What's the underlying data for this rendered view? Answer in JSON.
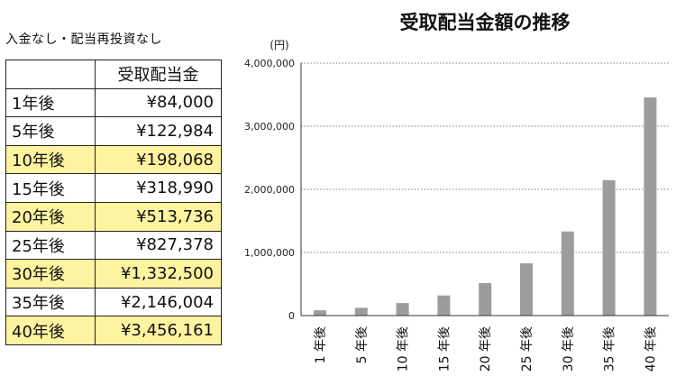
{
  "note": "入金なし・配当再投資なし",
  "table": {
    "header": [
      "",
      "受取配当金"
    ],
    "rows": [
      {
        "label": "1年後",
        "value": "¥84,000",
        "highlight": false
      },
      {
        "label": "5年後",
        "value": "¥122,984",
        "highlight": false
      },
      {
        "label": "10年後",
        "value": "¥198,068",
        "highlight": true
      },
      {
        "label": "15年後",
        "value": "¥318,990",
        "highlight": false
      },
      {
        "label": "20年後",
        "value": "¥513,736",
        "highlight": true
      },
      {
        "label": "25年後",
        "value": "¥827,378",
        "highlight": false
      },
      {
        "label": "30年後",
        "value": "¥1,332,500",
        "highlight": true
      },
      {
        "label": "35年後",
        "value": "¥2,146,004",
        "highlight": false
      },
      {
        "label": "40年後",
        "value": "¥3,456,161",
        "highlight": true
      }
    ],
    "highlight_color": "#fdf3a0"
  },
  "chart_data": {
    "type": "bar",
    "title": "受取配当金額の推移",
    "ylabel": "(円)",
    "xlabel": "",
    "categories": [
      "1 年後",
      "5 年後",
      "10 年後",
      "15 年後",
      "20 年後",
      "25 年後",
      "30 年後",
      "35 年後",
      "40 年後"
    ],
    "values": [
      84000,
      122984,
      198068,
      318990,
      513736,
      827378,
      1332500,
      2146004,
      3456161
    ],
    "ylim": [
      0,
      4000000
    ],
    "yticks": [
      0,
      1000000,
      2000000,
      3000000,
      4000000
    ],
    "ytick_labels": [
      "0",
      "1,000,000",
      "2,000,000",
      "3,000,000",
      "4,000,000"
    ],
    "grid": true,
    "bar_color": "#9c9c9c"
  }
}
